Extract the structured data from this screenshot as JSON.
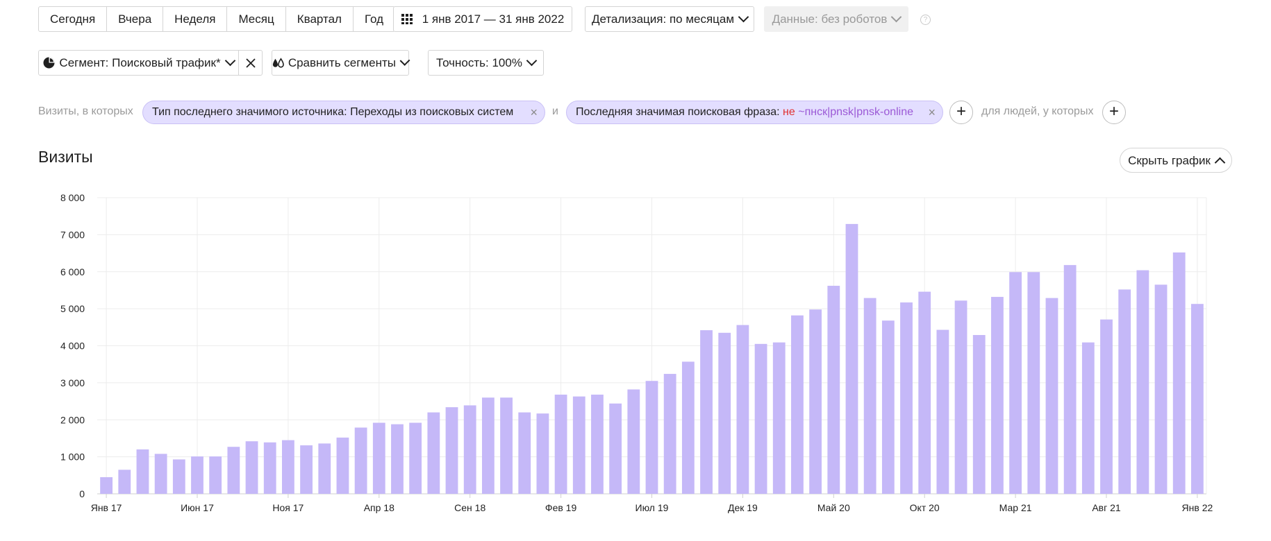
{
  "period_buttons": [
    "Сегодня",
    "Вчера",
    "Неделя",
    "Месяц",
    "Квартал",
    "Год"
  ],
  "date_range": "1 янв 2017 — 31 янв 2022",
  "detail_label": "Детализация: по месяцам",
  "data_label": "Данные: без роботов",
  "help_icon_text": "?",
  "segment_label": "Сегмент: Поисковый трафик*",
  "compare_label": "Сравнить сегменты",
  "accuracy_label": "Точность: 100%",
  "filter": {
    "prefix": "Визиты, в которых",
    "chip1": "Тип последнего значимого источника: Переходы из поисковых систем",
    "conj": "и",
    "chip2_label": "Последняя значимая поисковая фраза:",
    "chip2_not": "не",
    "chip2_value": "~пнск|pnsk|pnsk-online",
    "people": "для людей, у которых",
    "plus": "+"
  },
  "chart_title": "Визиты",
  "hide_chart": "Скрыть график",
  "chart_data": {
    "type": "bar",
    "ylim": [
      0,
      8000
    ],
    "y_ticks": [
      "0",
      "1 000",
      "2 000",
      "3 000",
      "4 000",
      "5 000",
      "6 000",
      "7 000",
      "8 000"
    ],
    "x_tick_labels": [
      "Янв 17",
      "Июн 17",
      "Ноя 17",
      "Апр 18",
      "Сен 18",
      "Фев 19",
      "Июл 19",
      "Дек 19",
      "Май 20",
      "Окт 20",
      "Мар 21",
      "Авг 21",
      "Янв 22"
    ],
    "x_tick_index": [
      0,
      5,
      10,
      15,
      20,
      25,
      30,
      35,
      40,
      45,
      50,
      55,
      60
    ],
    "bar_color": "#c5b8f8",
    "grid": true,
    "values": [
      450,
      650,
      1200,
      1080,
      930,
      1010,
      1010,
      1270,
      1420,
      1390,
      1450,
      1310,
      1360,
      1520,
      1790,
      1920,
      1880,
      1920,
      2200,
      2340,
      2390,
      2600,
      2600,
      2200,
      2170,
      2680,
      2630,
      2680,
      2440,
      2820,
      3050,
      3240,
      3570,
      4420,
      4350,
      4560,
      4050,
      4090,
      4820,
      4980,
      5620,
      7290,
      5290,
      4680,
      5170,
      5460,
      4430,
      5220,
      4290,
      5320,
      5990,
      5990,
      5290,
      6180,
      4090,
      4710,
      5520,
      6040,
      5650,
      6520,
      5130
    ]
  }
}
